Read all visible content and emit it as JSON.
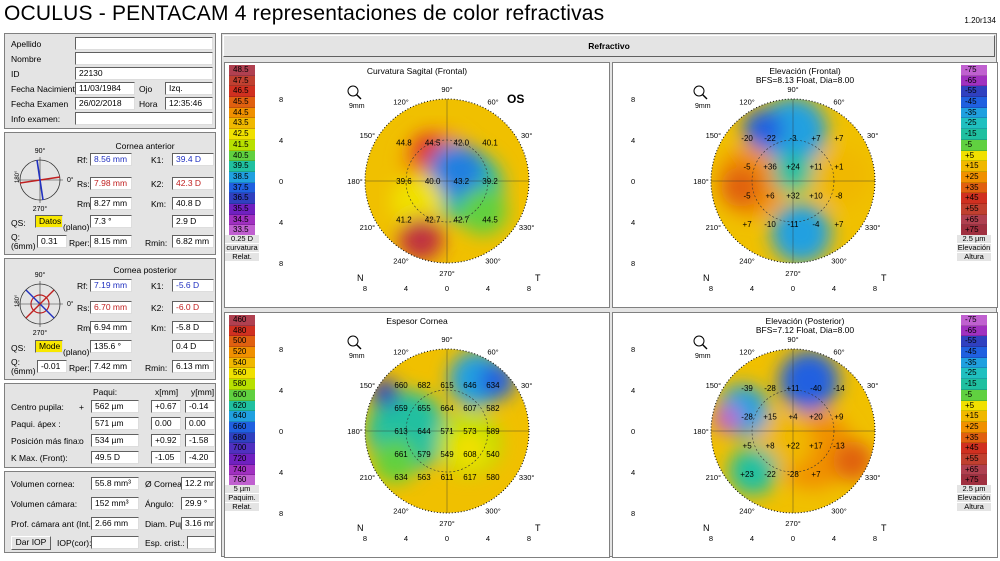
{
  "app": {
    "title": "OCULUS  -  PENTACAM   4 representaciones de color refractivas",
    "version": "1.20r134",
    "main_tab": "Refractivo"
  },
  "patient": {
    "apellido_label": "Apellido",
    "nombre_label": "Nombre",
    "id_label": "ID",
    "id": "22130",
    "fnac_label": "Fecha Nacimiento",
    "fnac": "11/03/1984",
    "ojo_label": "Ojo",
    "ojo": "Izq.",
    "fexam_label": "Fecha Examen",
    "fexam": "26/02/2018",
    "hora_label": "Hora",
    "hora": "12:35:46",
    "info_label": "Info examen:"
  },
  "anterior": {
    "title": "Cornea anterior",
    "rf_l": "Rf:",
    "rf": "8.56 mm",
    "k1_l": "K1:",
    "k1": "39.4 D",
    "rs_l": "Rs:",
    "rs": "7.98 mm",
    "k2_l": "K2:",
    "k2": "42.3 D",
    "rm_l": "Rm:",
    "rm": "8.27 mm",
    "km_l": "Km:",
    "km": "40.8 D",
    "qs_l": "QS:",
    "qs": "Datos!",
    "axis": "7.3 °",
    "plano": "(plano)",
    "astig": "2.9 D",
    "q_l": "Q:",
    "q6": "(6mm)",
    "q": "0.31",
    "rper_l": "Rper:",
    "rper": "8.15 mm",
    "rmin_l": "Rmin:",
    "rmin": "6.82 mm"
  },
  "posterior": {
    "title": "Cornea posterior",
    "rf": "7.19 mm",
    "k1": "-5.6 D",
    "rs": "6.70 mm",
    "k2": "-6.0 D",
    "rm": "6.94 mm",
    "km": "-5.8 D",
    "qs": "Mode",
    "axis": "135.6 °",
    "plano": "(plano)",
    "astig": "0.4 D",
    "q": "-0.01",
    "rper": "7.42 mm",
    "rmin": "6.13 mm"
  },
  "table": {
    "h_paqui": "Paqui:",
    "h_x": "x[mm]",
    "h_y": "y[mm]",
    "rows": [
      {
        "label": "Centro pupila:",
        "sym": "+",
        "paqui": "562 µm",
        "x": "+0.67",
        "y": "-0.14"
      },
      {
        "label": "Paqui. ápex :",
        "sym": "",
        "paqui": "571 µm",
        "x": "0.00",
        "y": "0.00"
      },
      {
        "label": "Posición más fina:",
        "sym": "o",
        "paqui": "534 µm",
        "x": "+0.92",
        "y": "-1.58"
      },
      {
        "label": "K Max. (Front):",
        "sym": "",
        "paqui": "49.5 D",
        "x": "-1.05",
        "y": "-4.20"
      }
    ]
  },
  "volumes": {
    "vc_l": "Volumen cornea:",
    "vc": "55.8 mm³",
    "dc_l": "Ø Cornea:",
    "dc": "12.2 mm",
    "vcam_l": "Volumen cámara:",
    "vcam": "152 mm³",
    "ang_l": "Ángulo:",
    "ang": "29.9 °",
    "prof_l": "Prof. cámara ant (Int.):",
    "prof": "2.66 mm",
    "diam_l": "Diam. Pup",
    "diam": "3.16 mm",
    "dar_iop": "Dar IOP",
    "iop_l": "IOP(cor):",
    "esp_l": "Esp. crist.:"
  },
  "compass": {
    "top": "90°",
    "bottom": "270°",
    "left": "180°",
    "right": "0°"
  },
  "colors": {
    "bg": "#e4e4e4",
    "k_blue": "#2030c0",
    "k_red": "#c02020"
  },
  "maps": {
    "sagital": {
      "title": "Curvatura Sagital (Frontal)",
      "eye": "OS",
      "zoom": "9mm",
      "nasal": "N",
      "temporal": "T",
      "scale_unit": "0.25 D",
      "scale_label": "curvatura",
      "scale_label2": "Relat.",
      "scale": [
        "48.5",
        "47.5",
        "46.5",
        "45.5",
        "44.5",
        "43.5",
        "42.5",
        "41.5",
        "40.5",
        "39.5",
        "38.5",
        "37.5",
        "36.5",
        "35.5",
        "34.5",
        "33.5"
      ],
      "values": [
        "44.8",
        "44.5",
        "42.0",
        "40.1",
        "39.6",
        "40.0",
        "43.2",
        "39.2",
        "41.2",
        "42.7",
        "42.7",
        "44.5"
      ]
    },
    "elev_front": {
      "title": "Elevación (Frontal)",
      "subtitle": "BFS=8.13 Float, Dia=8.00",
      "zoom": "9mm",
      "nasal": "N",
      "temporal": "T",
      "scale_unit": "2.5 µm",
      "scale_label": "Elevación",
      "scale_label2": "Altura",
      "scale": [
        "-75",
        "-65",
        "-55",
        "-45",
        "-35",
        "-25",
        "-15",
        "-5",
        "+5",
        "+15",
        "+25",
        "+35",
        "+45",
        "+55",
        "+65",
        "+75"
      ],
      "values": [
        "-20",
        "-22",
        "-3",
        "+7",
        "+7",
        "-5",
        "+36",
        "+24",
        "+11",
        "+1",
        "-5",
        "+6",
        "+32",
        "+10",
        "-8",
        "+7",
        "-10",
        "-11",
        "-4",
        "+7"
      ]
    },
    "espesor": {
      "title": "Espesor Cornea",
      "zoom": "9mm",
      "nasal": "N",
      "temporal": "T",
      "scale_unit": "5 µm",
      "scale_label": "Paquim.",
      "scale_label2": "Relat.",
      "scale": [
        "460",
        "480",
        "500",
        "520",
        "540",
        "560",
        "580",
        "600",
        "620",
        "640",
        "660",
        "680",
        "700",
        "720",
        "740",
        "760"
      ],
      "values": [
        "660",
        "682",
        "615",
        "646",
        "634",
        "659",
        "655",
        "664",
        "607",
        "582",
        "613",
        "644",
        "571",
        "573",
        "589",
        "661",
        "579",
        "549",
        "608",
        "540",
        "634",
        "563",
        "611",
        "617",
        "580"
      ]
    },
    "elev_post": {
      "title": "Elevación (Posterior)",
      "subtitle": "BFS=7.12 Float, Dia=8.00",
      "zoom": "9mm",
      "nasal": "N",
      "temporal": "T",
      "scale_unit": "2.5 µm",
      "scale_label": "Elevación",
      "scale_label2": "Altura",
      "scale": [
        "-75",
        "-65",
        "-55",
        "-45",
        "-35",
        "-25",
        "-15",
        "-5",
        "+5",
        "+15",
        "+25",
        "+35",
        "+45",
        "+55",
        "+65",
        "+75"
      ],
      "values": [
        "-39",
        "-28",
        "+11",
        "-40",
        "-14",
        "-28",
        "+15",
        "+4",
        "+20",
        "+9",
        "+5",
        "+8",
        "+22",
        "+17",
        "-13",
        "+23",
        "-22",
        "-28",
        "+7"
      ]
    }
  },
  "axis": {
    "ticks": [
      "8",
      "4",
      "0",
      "4",
      "8"
    ],
    "angles": [
      "90°",
      "120°",
      "150°",
      "180°",
      "210°",
      "240°",
      "270°",
      "300°",
      "330°",
      "60°",
      "30°"
    ]
  }
}
